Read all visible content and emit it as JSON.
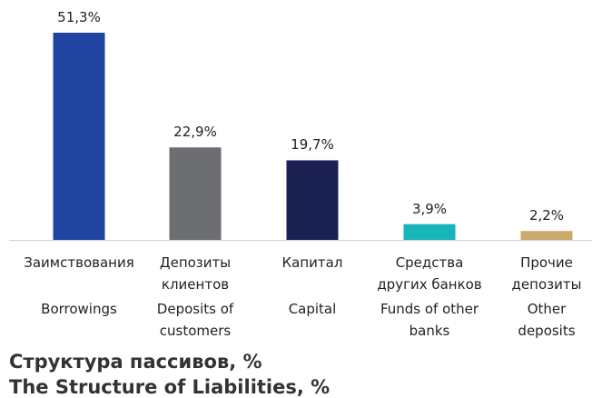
{
  "chart_data": {
    "type": "bar",
    "title": "Структура пассивов, %",
    "subtitle": "The Structure of Liabilities, %",
    "categories": [
      "Заимствования",
      "Депозиты\nклиентов",
      "Капитал",
      "Средства\nдругих банков",
      "Прочие\nдепозиты"
    ],
    "categories_en": [
      "Borrowings",
      "Deposits of\ncustomers",
      "Capital",
      "Funds of other\nbanks",
      "Other\ndeposits"
    ],
    "values": [
      51.3,
      22.9,
      19.7,
      3.9,
      2.2
    ],
    "value_labels": [
      "51,3%",
      "22,9%",
      "19,7%",
      "3,9%",
      "2,2%"
    ],
    "colors": [
      "#1f45a0",
      "#6d6e71",
      "#1a2152",
      "#17b4b9",
      "#c9aa6b"
    ]
  }
}
